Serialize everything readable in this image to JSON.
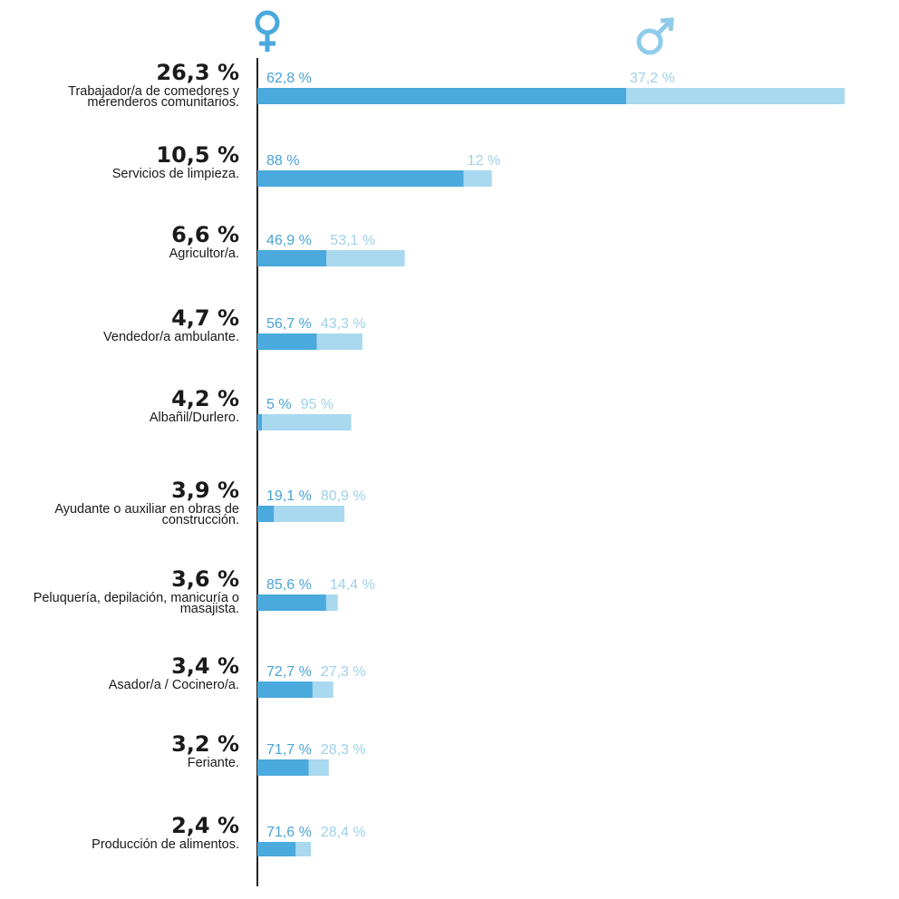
{
  "chart_data": {
    "type": "bar",
    "stacked": true,
    "orientation": "horizontal",
    "colors": {
      "female": "#4aa9dd",
      "male": "#a9d9ef",
      "axis": "#222222",
      "female_icon": "#4aa9dd",
      "male_icon": "#8fcbea"
    },
    "legend": {
      "female_icon": "female-symbol-icon",
      "male_icon": "male-symbol-icon",
      "female_symbol": "♀",
      "male_symbol": "♂",
      "placement": "top"
    },
    "categories": [
      {
        "label_lines": [
          "Trabajador/a de comedores y",
          "merenderos comunitarios."
        ],
        "total": 26.3,
        "total_label": "26,3 %",
        "female": 62.8,
        "female_label": "62,8 %",
        "male": 37.2,
        "male_label": "37,2 %"
      },
      {
        "label_lines": [
          "Servicios de limpieza."
        ],
        "total": 10.5,
        "total_label": "10,5 %",
        "female": 88,
        "female_label": "88 %",
        "male": 12,
        "male_label": "12 %"
      },
      {
        "label_lines": [
          "Agricultor/a."
        ],
        "total": 6.6,
        "total_label": "6,6 %",
        "female": 46.9,
        "female_label": "46,9 %",
        "male": 53.1,
        "male_label": "53,1 %"
      },
      {
        "label_lines": [
          "Vendedor/a ambulante."
        ],
        "total": 4.7,
        "total_label": "4,7 %",
        "female": 56.7,
        "female_label": "56,7 %",
        "male": 43.3,
        "male_label": "43,3 %"
      },
      {
        "label_lines": [
          "Albañil/Durlero."
        ],
        "total": 4.2,
        "total_label": "4,2 %",
        "female": 5,
        "female_label": "5 %",
        "male": 95,
        "male_label": "95 %"
      },
      {
        "label_lines": [
          "Ayudante o auxiliar en obras de",
          "construcción."
        ],
        "total": 3.9,
        "total_label": "3,9 %",
        "female": 19.1,
        "female_label": "19,1 %",
        "male": 80.9,
        "male_label": "80,9 %"
      },
      {
        "label_lines": [
          "Peluquería, depilación, manicuría o",
          "masajista."
        ],
        "total": 3.6,
        "total_label": "3,6 %",
        "female": 85.6,
        "female_label": "85,6 %",
        "male": 14.4,
        "male_label": "14,4 %"
      },
      {
        "label_lines": [
          "Asador/a / Cocinero/a."
        ],
        "total": 3.4,
        "total_label": "3,4 %",
        "female": 72.7,
        "female_label": "72,7 %",
        "male": 27.3,
        "male_label": "27,3 %"
      },
      {
        "label_lines": [
          "Feriante."
        ],
        "total": 3.2,
        "total_label": "3,2 %",
        "female": 71.7,
        "female_label": "71,7 %",
        "male": 28.3,
        "male_label": "28,3 %"
      },
      {
        "label_lines": [
          "Producción de alimentos."
        ],
        "total": 2.4,
        "total_label": "2,4 %",
        "female": 71.6,
        "female_label": "71,6 %",
        "male": 28.4,
        "male_label": "28,4 %"
      }
    ]
  }
}
